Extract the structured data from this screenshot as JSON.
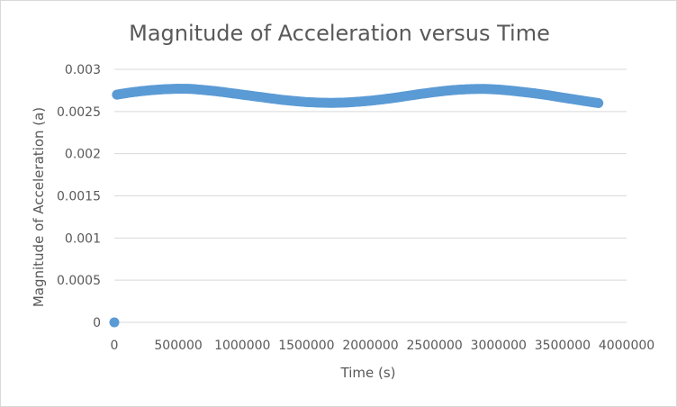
{
  "chart_data": {
    "type": "scatter",
    "title": "Magnitude of Acceleration versus Time",
    "xlabel": "Time (s)",
    "ylabel": "Magnitude of Acceleration (a)",
    "xlim": [
      0,
      4000000
    ],
    "ylim": [
      0,
      0.003
    ],
    "x_ticks": [
      "0",
      "500000",
      "1000000",
      "1500000",
      "2000000",
      "2500000",
      "3000000",
      "3500000",
      "4000000"
    ],
    "y_ticks": [
      "0",
      "0.0005",
      "0.001",
      "0.0015",
      "0.002",
      "0.0025",
      "0.003"
    ],
    "grid": "horizontal",
    "legend": "none",
    "marker_color": "#5b9bd5",
    "series": [
      {
        "x": [
          0,
          20000,
          100000,
          200000,
          300000,
          400000,
          500000,
          600000,
          700000,
          800000,
          900000,
          1000000,
          1100000,
          1200000,
          1300000,
          1400000,
          1500000,
          1600000,
          1700000,
          1800000,
          1900000,
          2000000,
          2100000,
          2200000,
          2300000,
          2400000,
          2500000,
          2600000,
          2700000,
          2800000,
          2900000,
          3000000,
          3100000,
          3200000,
          3300000,
          3400000,
          3500000,
          3600000,
          3700000,
          3780000
        ],
        "y": [
          0,
          0.0027,
          0.00272,
          0.00274,
          0.002755,
          0.002765,
          0.00277,
          0.002768,
          0.002755,
          0.00274,
          0.00272,
          0.0027,
          0.00268,
          0.00266,
          0.00264,
          0.002625,
          0.002612,
          0.002605,
          0.002602,
          0.002606,
          0.002615,
          0.002628,
          0.002645,
          0.002665,
          0.002688,
          0.00271,
          0.00273,
          0.002748,
          0.00276,
          0.002767,
          0.002768,
          0.00276,
          0.002747,
          0.00273,
          0.002712,
          0.00269,
          0.002665,
          0.002642,
          0.002618,
          0.0026
        ]
      }
    ]
  }
}
